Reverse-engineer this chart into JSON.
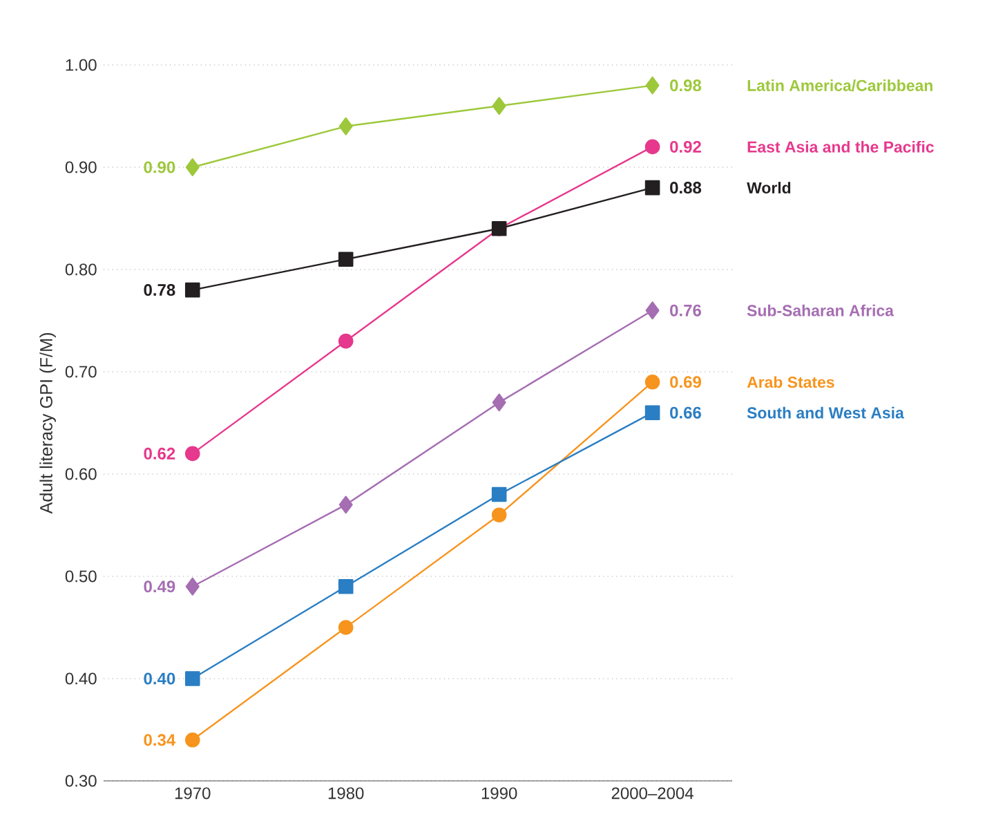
{
  "chart_data": {
    "type": "line",
    "ylabel": "Adult literacy GPI (F/M)",
    "categories": [
      "1970",
      "1980",
      "1990",
      "2000–2004"
    ],
    "ylim": [
      0.3,
      1.0
    ],
    "yticks": [
      {
        "value": 0.3,
        "label": "0.30"
      },
      {
        "value": 0.4,
        "label": "0.40"
      },
      {
        "value": 0.5,
        "label": "0.50"
      },
      {
        "value": 0.6,
        "label": "0.60"
      },
      {
        "value": 0.7,
        "label": "0.70"
      },
      {
        "value": 0.8,
        "label": "0.80"
      },
      {
        "value": 0.9,
        "label": "0.90"
      },
      {
        "value": 1.0,
        "label": "1.00"
      }
    ],
    "grid": "y",
    "line_style": "solid",
    "series": [
      {
        "name": "Latin America/Caribbean",
        "color": "#9dc83b",
        "marker": "diamond",
        "values": [
          0.9,
          0.94,
          0.96,
          0.98
        ],
        "value_labels": [
          "0.90",
          null,
          null,
          "0.98"
        ]
      },
      {
        "name": "East Asia and the Pacific",
        "color": "#e6388c",
        "marker": "circle",
        "values": [
          0.62,
          0.73,
          0.84,
          0.92
        ],
        "value_labels": [
          "0.62",
          null,
          null,
          "0.92"
        ]
      },
      {
        "name": "World",
        "color": "#231f20",
        "marker": "square",
        "values": [
          0.78,
          0.81,
          0.84,
          0.88
        ],
        "value_labels": [
          "0.78",
          null,
          null,
          "0.88"
        ]
      },
      {
        "name": "Sub-Saharan Africa",
        "color": "#a56db2",
        "marker": "diamond",
        "values": [
          0.49,
          0.57,
          0.67,
          0.76
        ],
        "value_labels": [
          "0.49",
          null,
          null,
          "0.76"
        ]
      },
      {
        "name": "Arab States",
        "color": "#f7941d",
        "marker": "circle",
        "values": [
          0.34,
          0.45,
          0.56,
          0.69
        ],
        "value_labels": [
          "0.34",
          null,
          null,
          "0.69"
        ]
      },
      {
        "name": "South and West Asia",
        "color": "#2a7ec3",
        "marker": "square",
        "values": [
          0.4,
          0.49,
          0.58,
          0.66
        ],
        "value_labels": [
          "0.40",
          null,
          null,
          "0.66"
        ]
      }
    ]
  }
}
